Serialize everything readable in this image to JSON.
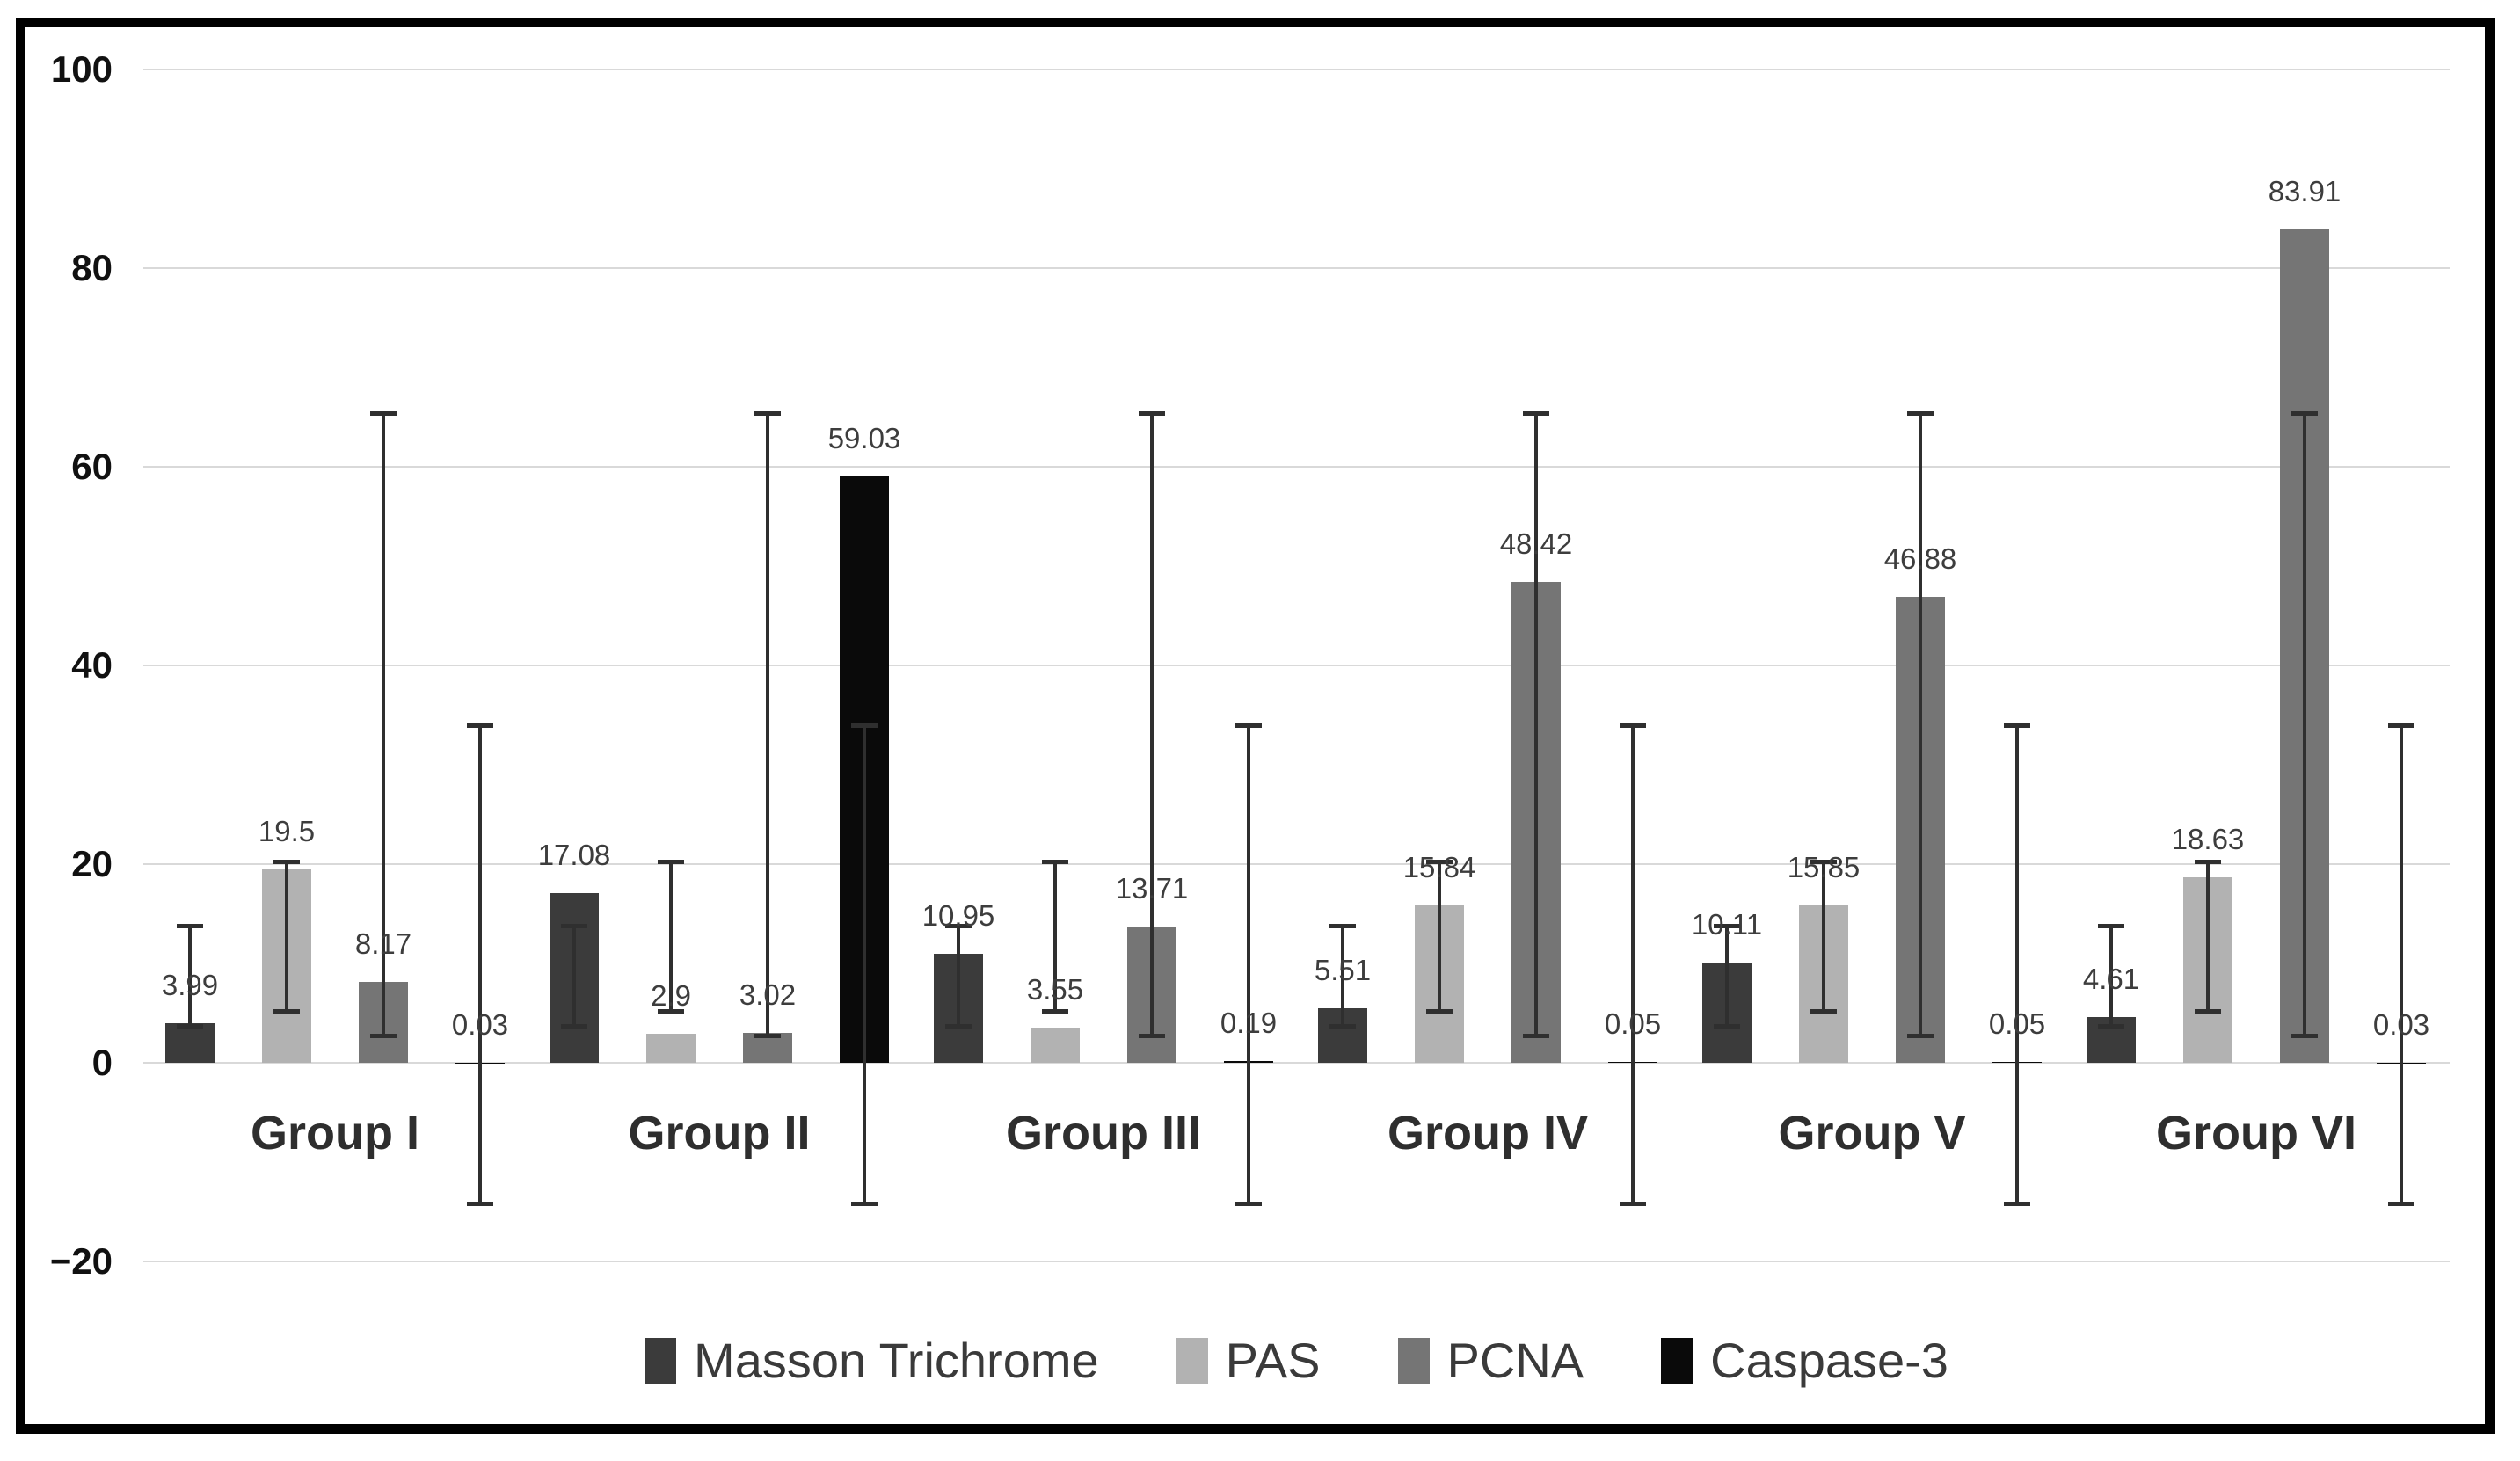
{
  "chart_data": {
    "type": "bar",
    "title": "",
    "categories": [
      "Group I",
      "Group II",
      "Group III",
      "Group IV",
      "Group V",
      "Group VI"
    ],
    "series": [
      {
        "name": "Masson Trichrome",
        "color": "#3b3b3b",
        "values": [
          3.99,
          17.08,
          10.95,
          5.51,
          10.11,
          4.61
        ],
        "labels": [
          "3.99",
          "17.08",
          "10.95",
          "5.51",
          "10.11",
          "4.61"
        ],
        "error_bar": {
          "low": 3.68,
          "high": 13.74
        }
      },
      {
        "name": "PAS",
        "color": "#b2b2b2",
        "values": [
          19.5,
          2.9,
          3.55,
          15.84,
          15.85,
          18.63
        ],
        "labels": [
          "19.5",
          "2.9",
          "3.55",
          "15.84",
          "15.85",
          "18.63"
        ],
        "error_bar": {
          "low": 5.22,
          "high": 20.21
        }
      },
      {
        "name": "PCNA",
        "color": "#757575",
        "values": [
          8.17,
          3.02,
          13.71,
          48.42,
          46.88,
          83.91
        ],
        "labels": [
          "8.17",
          "3.02",
          "13.71",
          "48.42",
          "46.88",
          "83.91"
        ],
        "error_bar": {
          "low": 2.7,
          "high": 65.33
        }
      },
      {
        "name": "Caspase-3",
        "color": "#0a0a0a",
        "values": [
          0.03,
          59.03,
          0.19,
          0.05,
          0.05,
          0.03
        ],
        "labels": [
          "0.03",
          "59.03",
          "0.19",
          "0.05",
          "0.05",
          "0.03"
        ],
        "error_bar": {
          "low": -14.17,
          "high": 33.97
        }
      }
    ],
    "y_axis": {
      "min": -20,
      "max": 100,
      "ticks": [
        {
          "value": 100,
          "label": "100"
        },
        {
          "value": 80,
          "label": "80"
        },
        {
          "value": 60,
          "label": "60"
        },
        {
          "value": 40,
          "label": "40"
        },
        {
          "value": 20,
          "label": "20"
        },
        {
          "value": 0,
          "label": "0"
        },
        {
          "value": -20,
          "label": "−20"
        }
      ],
      "gridlines": true,
      "gridline_color": "#d9d9d9"
    },
    "legend": {
      "position": "bottom",
      "entries": [
        "Masson Trichrome",
        "PAS",
        "PCNA",
        "Caspase-3"
      ]
    },
    "frame_border_color": "#000000",
    "background_color": "#ffffff"
  }
}
